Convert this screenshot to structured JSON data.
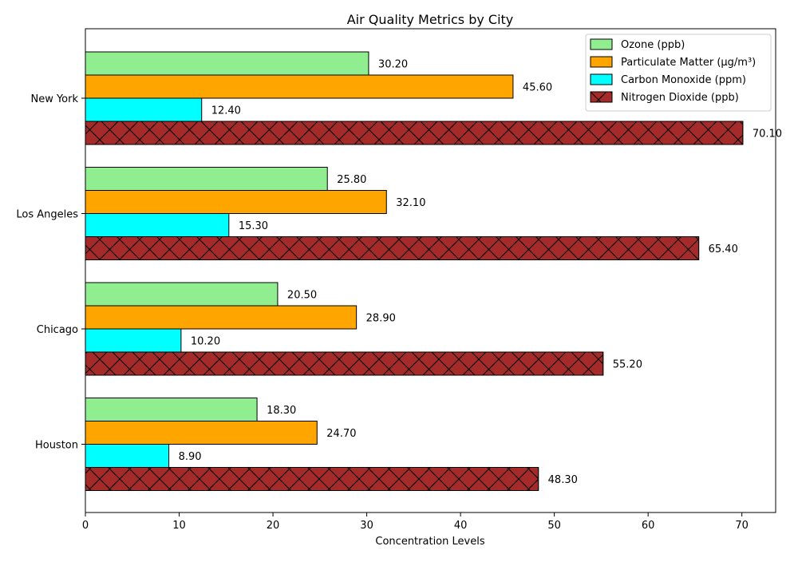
{
  "chart_data": {
    "type": "bar",
    "orientation": "horizontal",
    "title": "Air Quality Metrics by City",
    "xlabel": "Concentration Levels",
    "ylabel": "",
    "xlim": [
      0,
      73.6
    ],
    "x_ticks": [
      0,
      10,
      20,
      30,
      40,
      50,
      60,
      70
    ],
    "grid": false,
    "legend_position": "top-right",
    "value_label_format": "2-decimals",
    "categories": [
      "New York",
      "Los Angeles",
      "Chicago",
      "Houston"
    ],
    "series": [
      {
        "name": "Ozone (ppb)",
        "color": "#90ee90",
        "hatch": "none",
        "values": [
          30.2,
          25.8,
          20.5,
          18.3
        ]
      },
      {
        "name": "Particulate Matter (μg/m³)",
        "color": "#ffa500",
        "hatch": "none",
        "values": [
          45.6,
          32.1,
          28.9,
          24.7
        ]
      },
      {
        "name": "Carbon Monoxide (ppm)",
        "color": "#00ffff",
        "hatch": "none",
        "values": [
          12.4,
          15.3,
          10.2,
          8.9
        ]
      },
      {
        "name": "Nitrogen Dioxide (ppb)",
        "color": "#a52a2a",
        "hatch": "cross",
        "values": [
          70.1,
          65.4,
          55.2,
          48.3
        ]
      }
    ]
  }
}
